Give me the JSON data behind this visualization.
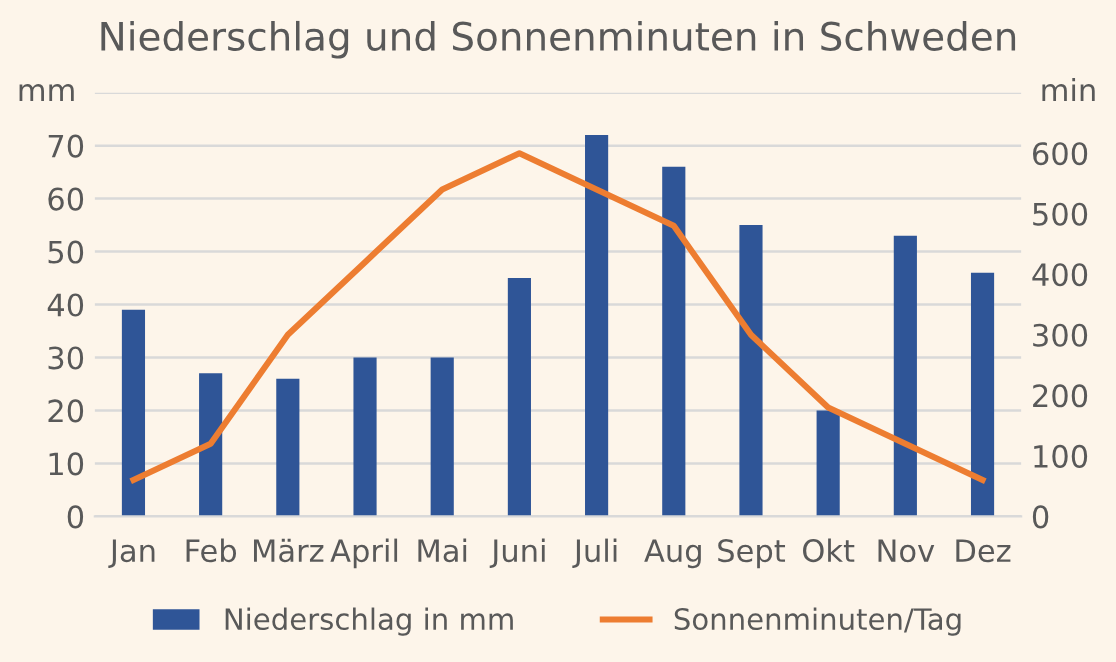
{
  "chart_data": {
    "type": "bar",
    "title": "Niederschlag und Sonnenminuten in Schweden",
    "categories": [
      "Jan",
      "Feb",
      "März",
      "April",
      "Mai",
      "Juni",
      "Juli",
      "Aug",
      "Sept",
      "Okt",
      "Nov",
      "Dez"
    ],
    "series": [
      {
        "name": "Niederschlag in mm",
        "color": "#2f5597",
        "values": [
          39,
          27,
          26,
          30,
          30,
          45,
          72,
          66,
          55,
          20,
          53,
          46
        ]
      },
      {
        "name": "Sonnenminuten/Tag",
        "type": "line",
        "axis": "y2",
        "color": "#ed7d31",
        "values": [
          60,
          120,
          300,
          420,
          540,
          600,
          540,
          480,
          300,
          180,
          120,
          60
        ]
      }
    ],
    "ylabel": "mm",
    "y2label": "min",
    "ylim": [
      0,
      80
    ],
    "yticks": [
      0,
      10,
      20,
      30,
      40,
      50,
      60,
      70,
      {
        "value": 80,
        "label": null
      }
    ],
    "y2lim": [
      0,
      700
    ],
    "y2ticks": [
      0,
      100,
      200,
      300,
      400,
      500,
      600
    ],
    "grid": "y",
    "legend": "bottom",
    "marker": "none",
    "line_style": "solid"
  }
}
